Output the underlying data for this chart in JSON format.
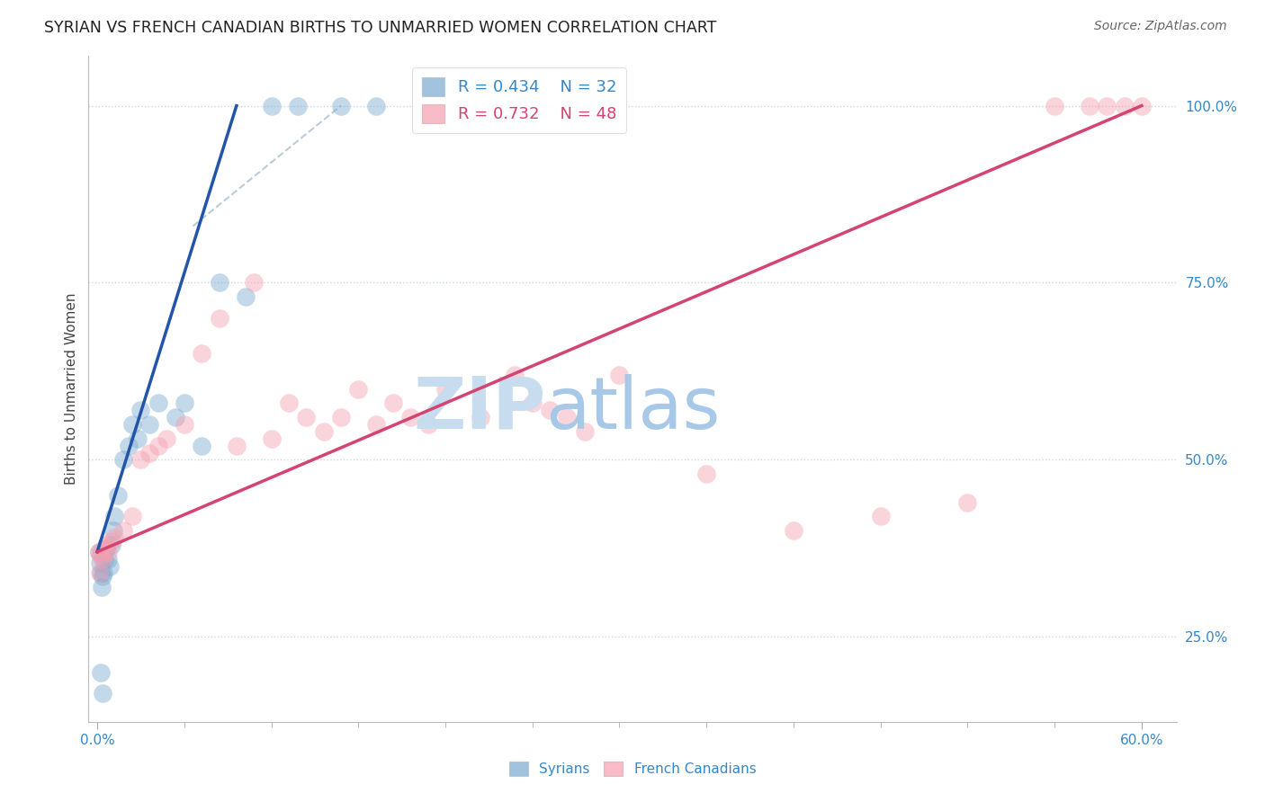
{
  "title": "SYRIAN VS FRENCH CANADIAN BIRTHS TO UNMARRIED WOMEN CORRELATION CHART",
  "source": "Source: ZipAtlas.com",
  "ylabel": "Births to Unmarried Women",
  "xlabel_ticks": [
    "0.0%",
    "60.0%"
  ],
  "xlabel_minor_ticks": [
    0,
    5,
    10,
    15,
    20,
    25,
    30,
    35,
    40,
    45,
    50,
    55,
    60
  ],
  "xlabel_vals": [
    0.0,
    60.0
  ],
  "ylabel_ticks": [
    "25.0%",
    "50.0%",
    "75.0%",
    "100.0%"
  ],
  "ylabel_vals": [
    25.0,
    50.0,
    75.0,
    100.0
  ],
  "xlim": [
    -0.5,
    62.0
  ],
  "ylim": [
    13.0,
    107.0
  ],
  "syrian_R": 0.434,
  "syrian_N": 32,
  "french_R": 0.732,
  "french_N": 48,
  "syrian_color": "#7AAAD0",
  "french_color": "#F4A0B0",
  "syrian_line_color": "#2255AA",
  "french_line_color": "#D44470",
  "diagonal_color": "#BBCCD8",
  "background_color": "#FFFFFF",
  "grid_color": "#C8D8E8",
  "title_color": "#222222",
  "label_color": "#3388CC",
  "watermark_color": "#DCE9F4",
  "legend_color_syrian": "#3388CC",
  "legend_color_french": "#D44470",
  "syrian_line_x0": 0.0,
  "syrian_line_y0": 37.0,
  "syrian_line_x1": 8.0,
  "syrian_line_y1": 100.0,
  "french_line_x0": 0.0,
  "french_line_y0": 37.0,
  "french_line_x1": 60.0,
  "french_line_y1": 100.0,
  "dash_line_x0": 5.5,
  "dash_line_y0": 83.0,
  "dash_line_x1": 14.0,
  "dash_line_y1": 100.0,
  "syrian_x": [
    0.1,
    0.15,
    0.2,
    0.25,
    0.3,
    0.35,
    0.4,
    0.5,
    0.6,
    0.7,
    0.8,
    0.9,
    1.0,
    1.2,
    1.5,
    1.8,
    2.0,
    2.3,
    2.5,
    3.0,
    3.5,
    4.5,
    5.0,
    6.0,
    7.0,
    8.5,
    10.0,
    11.5,
    14.0,
    16.0,
    0.2,
    0.3
  ],
  "syrian_y": [
    37.0,
    35.5,
    34.0,
    32.0,
    33.5,
    34.0,
    36.0,
    37.5,
    36.0,
    35.0,
    38.0,
    40.0,
    42.0,
    45.0,
    50.0,
    52.0,
    55.0,
    53.0,
    57.0,
    55.0,
    58.0,
    56.0,
    58.0,
    52.0,
    75.0,
    73.0,
    100.0,
    100.0,
    100.0,
    100.0,
    20.0,
    17.0
  ],
  "french_x": [
    0.1,
    0.2,
    0.3,
    0.4,
    0.5,
    0.6,
    0.8,
    1.0,
    1.5,
    2.0,
    2.5,
    3.0,
    3.5,
    4.0,
    5.0,
    6.0,
    7.0,
    8.0,
    9.0,
    10.0,
    11.0,
    12.0,
    13.0,
    14.0,
    15.0,
    16.0,
    17.0,
    18.0,
    19.0,
    20.0,
    22.0,
    24.0,
    25.0,
    26.0,
    27.0,
    28.0,
    30.0,
    35.0,
    40.0,
    45.0,
    50.0,
    55.0,
    57.0,
    58.0,
    59.0,
    60.0,
    0.15,
    0.25
  ],
  "french_y": [
    37.0,
    36.5,
    36.0,
    37.5,
    38.0,
    37.0,
    38.5,
    39.0,
    40.0,
    42.0,
    50.0,
    51.0,
    52.0,
    53.0,
    55.0,
    65.0,
    70.0,
    52.0,
    75.0,
    53.0,
    58.0,
    56.0,
    54.0,
    56.0,
    60.0,
    55.0,
    58.0,
    56.0,
    55.0,
    60.0,
    56.0,
    62.0,
    58.0,
    57.0,
    56.0,
    54.0,
    62.0,
    48.0,
    40.0,
    42.0,
    44.0,
    100.0,
    100.0,
    100.0,
    100.0,
    100.0,
    34.0,
    37.0
  ]
}
